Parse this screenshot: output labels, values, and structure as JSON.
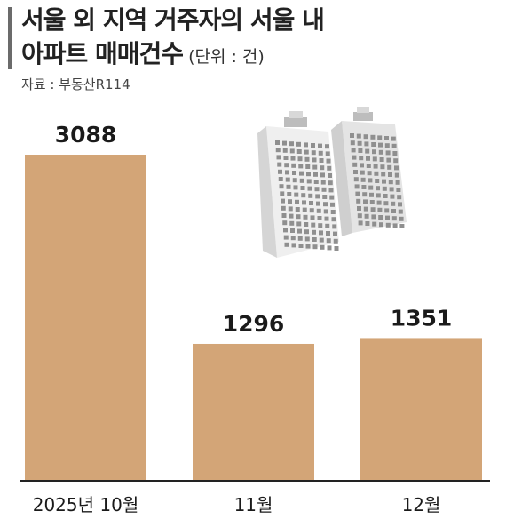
{
  "header": {
    "title_line1": "서울 외 지역 거주자의 서울 내",
    "title_line2": "아파트 매매건수",
    "unit": "(단위 : 건)",
    "source": "자료 : 부동산R114"
  },
  "illustration": {
    "icon": "apartment-buildings-icon"
  },
  "colors": {
    "bar": "#d3a577",
    "baseline": "#222222",
    "text": "#1a1a1a"
  },
  "chart_data": {
    "type": "bar",
    "categories": [
      "2025년 10월",
      "11월",
      "12월"
    ],
    "values": [
      3088,
      1296,
      1351
    ],
    "title": "서울 외 지역 거주자의 서울 내 아파트 매매건수",
    "ylabel": "",
    "xlabel": "",
    "ylim": [
      0,
      3400
    ],
    "grid": false,
    "legend": "none"
  }
}
